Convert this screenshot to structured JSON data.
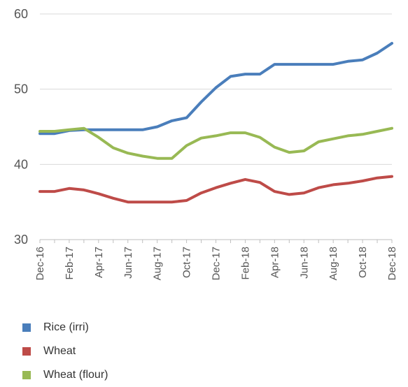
{
  "chart_data": {
    "type": "line",
    "title": "",
    "xlabel": "",
    "ylabel": "",
    "ylim": [
      30,
      60
    ],
    "yticks": [
      30,
      40,
      50,
      60
    ],
    "grid": true,
    "legend_position": "bottom-left",
    "x": [
      "Dec-16",
      "Jan-17",
      "Feb-17",
      "Mar-17",
      "Apr-17",
      "May-17",
      "Jun-17",
      "Jul-17",
      "Aug-17",
      "Sep-17",
      "Oct-17",
      "Nov-17",
      "Dec-17",
      "Jan-18",
      "Feb-18",
      "Mar-18",
      "Apr-18",
      "May-18",
      "Jun-18",
      "Jul-18",
      "Aug-18",
      "Sep-18",
      "Oct-18",
      "Nov-18",
      "Dec-18"
    ],
    "x_tick_labels": [
      "Dec-16",
      "Feb-17",
      "Apr-17",
      "Jun-17",
      "Aug-17",
      "Oct-17",
      "Dec-17",
      "Feb-18",
      "Apr-18",
      "Jun-18",
      "Aug-18",
      "Oct-18",
      "Dec-18"
    ],
    "series": [
      {
        "name": "Rice (irri)",
        "color": "#4a7ebb",
        "values": [
          44.1,
          44.1,
          44.5,
          44.6,
          44.6,
          44.6,
          44.6,
          44.6,
          45.0,
          45.8,
          46.2,
          48.3,
          50.2,
          51.7,
          52.0,
          52.0,
          53.3,
          53.3,
          53.3,
          53.3,
          53.3,
          53.7,
          53.9,
          54.8,
          56.1
        ]
      },
      {
        "name": "Wheat",
        "color": "#be4b48",
        "values": [
          36.4,
          36.4,
          36.8,
          36.6,
          36.1,
          35.5,
          35.0,
          35.0,
          35.0,
          35.0,
          35.2,
          36.2,
          36.9,
          37.5,
          38.0,
          37.6,
          36.4,
          36.0,
          36.2,
          36.9,
          37.3,
          37.5,
          37.8,
          38.2,
          38.4
        ]
      },
      {
        "name": "Wheat (flour)",
        "color": "#98b954",
        "values": [
          44.4,
          44.4,
          44.6,
          44.8,
          43.6,
          42.2,
          41.5,
          41.1,
          40.8,
          40.8,
          42.5,
          43.5,
          43.8,
          44.2,
          44.2,
          43.6,
          42.3,
          41.6,
          41.8,
          43.0,
          43.4,
          43.8,
          44.0,
          44.4,
          44.8
        ]
      }
    ]
  }
}
